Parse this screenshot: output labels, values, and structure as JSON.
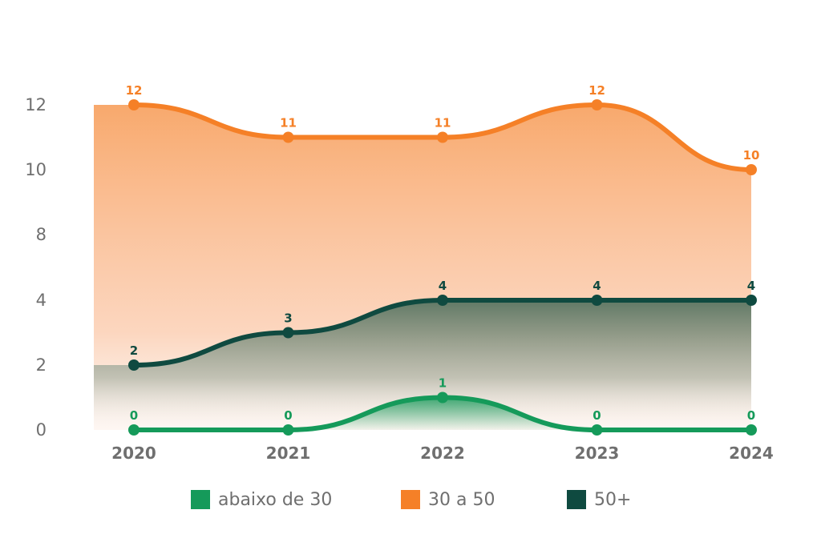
{
  "chart_data": {
    "type": "area",
    "categories": [
      "2020",
      "2021",
      "2022",
      "2023",
      "2024"
    ],
    "series": [
      {
        "name": "abaixo de 30",
        "values": [
          0,
          0,
          1,
          0,
          0
        ],
        "color": "#159a5a"
      },
      {
        "name": "30 a 50",
        "values": [
          12,
          11,
          11,
          12,
          10
        ],
        "color": "#f58027"
      },
      {
        "name": "50+",
        "values": [
          2,
          3,
          4,
          4,
          4
        ],
        "color": "#0f4a40"
      }
    ],
    "y_ticks": [
      "0",
      "2",
      "4",
      "8",
      "10",
      "12"
    ],
    "title": "",
    "xlabel": "",
    "ylabel": "",
    "grid": false,
    "legend_placement": "bottom"
  }
}
